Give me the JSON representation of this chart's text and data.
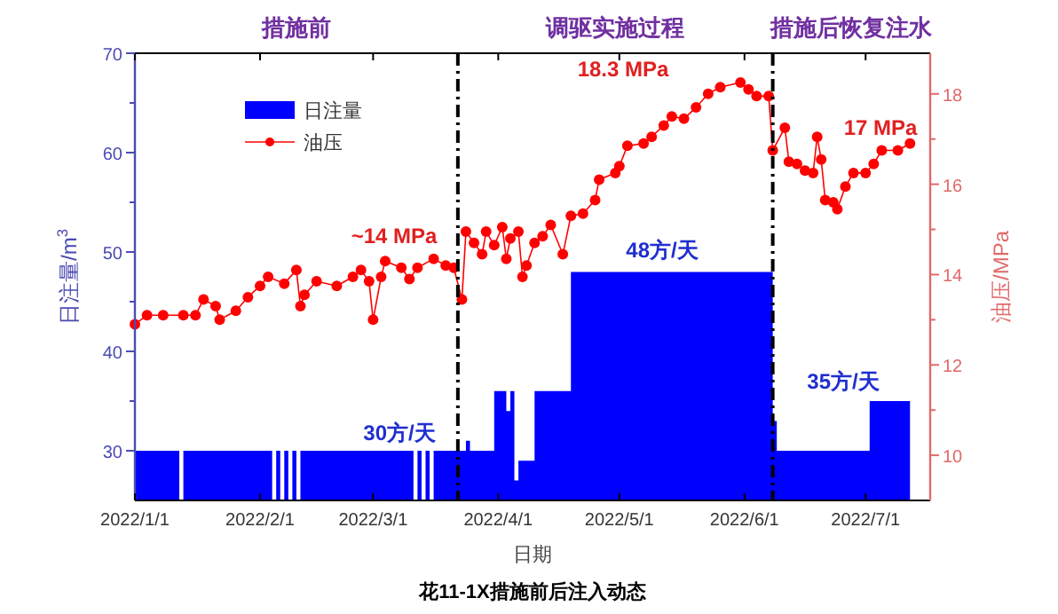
{
  "chart_data": {
    "type": "area",
    "title": "花11-1X措施前后注入动态",
    "xlabel": "日期",
    "ylabel": "日注量/m$^{3}$",
    "y2label": "油压/MPa",
    "xlim": [
      "2022-01-01",
      "2022-07-17"
    ],
    "xticks": [
      {
        "value": "2022-01-01",
        "label": "2022/1/1"
      },
      {
        "value": "2022-02-01",
        "label": "2022/2/1"
      },
      {
        "value": "2022-03-01",
        "label": "2022/3/1"
      },
      {
        "value": "2022-04-01",
        "label": "2022/4/1"
      },
      {
        "value": "2022-05-01",
        "label": "2022/5/1"
      },
      {
        "value": "2022-06-01",
        "label": "2022/6/1"
      },
      {
        "value": "2022-07-01",
        "label": "2022/7/1"
      }
    ],
    "ylim": [
      25,
      70
    ],
    "yticks": [
      30,
      {
        "value": 35,
        "label": null
      },
      40,
      {
        "value": 45,
        "label": null
      },
      50,
      {
        "value": 55,
        "label": null
      },
      60,
      {
        "value": 65,
        "label": null
      },
      70
    ],
    "y2lim": [
      9,
      18.9
    ],
    "y2ticks": [
      10,
      {
        "value": 11,
        "label": null
      },
      12,
      {
        "value": 13,
        "label": null
      },
      14,
      {
        "value": 15,
        "label": null
      },
      16,
      {
        "value": 17,
        "label": null
      },
      18
    ],
    "legend": "top left",
    "ref_lines": [
      {
        "axis": "x",
        "value": "2022-03-22",
        "line_style": "dashdot",
        "color": "#000000"
      },
      {
        "axis": "x",
        "value": "2022-06-08",
        "line_style": "dashdot",
        "color": "#000000"
      }
    ],
    "annotations": [
      "措施前",
      "调驱实施过程",
      "措施后恢复注水",
      "~14 MPa",
      "18.3 MPa",
      "17 MPa",
      "30方/天",
      "48方/天",
      "35方/天"
    ],
    "series": [
      {
        "name": "日注量",
        "color": "#0000ff",
        "x": [
          "2022-01-01",
          "2022-01-02",
          "2022-01-03",
          "2022-01-04",
          "2022-01-05",
          "2022-01-06",
          "2022-01-07",
          "2022-01-08",
          "2022-01-09",
          "2022-01-10",
          "2022-01-11",
          "2022-01-12",
          "2022-01-13",
          "2022-01-14",
          "2022-01-15",
          "2022-01-16",
          "2022-01-17",
          "2022-01-18",
          "2022-01-19",
          "2022-01-20",
          "2022-01-21",
          "2022-01-22",
          "2022-01-23",
          "2022-01-24",
          "2022-01-25",
          "2022-01-26",
          "2022-01-27",
          "2022-01-28",
          "2022-01-29",
          "2022-01-30",
          "2022-01-31",
          "2022-02-01",
          "2022-02-02",
          "2022-02-03",
          "2022-02-04",
          "2022-02-05",
          "2022-02-06",
          "2022-02-07",
          "2022-02-08",
          "2022-02-09",
          "2022-02-10",
          "2022-02-11",
          "2022-02-12",
          "2022-02-13",
          "2022-02-14",
          "2022-02-15",
          "2022-02-16",
          "2022-02-17",
          "2022-02-18",
          "2022-02-19",
          "2022-02-20",
          "2022-02-21",
          "2022-02-22",
          "2022-02-23",
          "2022-02-24",
          "2022-02-25",
          "2022-02-26",
          "2022-02-27",
          "2022-02-28",
          "2022-03-01",
          "2022-03-02",
          "2022-03-03",
          "2022-03-04",
          "2022-03-05",
          "2022-03-06",
          "2022-03-07",
          "2022-03-08",
          "2022-03-09",
          "2022-03-10",
          "2022-03-11",
          "2022-03-12",
          "2022-03-13",
          "2022-03-14",
          "2022-03-15",
          "2022-03-16",
          "2022-03-17",
          "2022-03-18",
          "2022-03-19",
          "2022-03-20",
          "2022-03-21",
          "2022-03-22",
          "2022-03-23",
          "2022-03-24",
          "2022-03-25",
          "2022-03-26",
          "2022-03-27",
          "2022-03-28",
          "2022-03-29",
          "2022-03-30",
          "2022-03-31",
          "2022-04-01",
          "2022-04-02",
          "2022-04-03",
          "2022-04-04",
          "2022-04-05",
          "2022-04-06",
          "2022-04-07",
          "2022-04-08",
          "2022-04-09",
          "2022-04-10",
          "2022-04-11",
          "2022-04-12",
          "2022-04-13",
          "2022-04-14",
          "2022-04-15",
          "2022-04-16",
          "2022-04-17",
          "2022-04-18",
          "2022-04-19",
          "2022-04-20",
          "2022-04-21",
          "2022-04-22",
          "2022-04-23",
          "2022-04-24",
          "2022-04-25",
          "2022-04-26",
          "2022-04-27",
          "2022-04-28",
          "2022-04-29",
          "2022-04-30",
          "2022-05-01",
          "2022-05-02",
          "2022-05-03",
          "2022-05-04",
          "2022-05-05",
          "2022-05-06",
          "2022-05-07",
          "2022-05-08",
          "2022-05-09",
          "2022-05-10",
          "2022-05-11",
          "2022-05-12",
          "2022-05-13",
          "2022-05-14",
          "2022-05-15",
          "2022-05-16",
          "2022-05-17",
          "2022-05-18",
          "2022-05-19",
          "2022-05-20",
          "2022-05-21",
          "2022-05-22",
          "2022-05-23",
          "2022-05-24",
          "2022-05-25",
          "2022-05-26",
          "2022-05-27",
          "2022-05-28",
          "2022-05-29",
          "2022-05-30",
          "2022-05-31",
          "2022-06-01",
          "2022-06-02",
          "2022-06-03",
          "2022-06-04",
          "2022-06-05",
          "2022-06-06",
          "2022-06-07",
          "2022-06-08",
          "2022-06-09",
          "2022-06-10",
          "2022-06-11",
          "2022-06-12",
          "2022-06-13",
          "2022-06-14",
          "2022-06-15",
          "2022-06-16",
          "2022-06-17",
          "2022-06-18",
          "2022-06-19",
          "2022-06-20",
          "2022-06-21",
          "2022-06-22",
          "2022-06-23",
          "2022-06-24",
          "2022-06-25",
          "2022-06-26",
          "2022-06-27",
          "2022-06-28",
          "2022-06-29",
          "2022-06-30",
          "2022-07-01",
          "2022-07-02",
          "2022-07-03",
          "2022-07-04",
          "2022-07-05",
          "2022-07-06",
          "2022-07-07",
          "2022-07-08",
          "2022-07-09",
          "2022-07-10",
          "2022-07-11"
        ],
        "values": [
          30,
          30,
          30,
          30,
          30,
          30,
          30,
          30,
          30,
          30,
          30,
          null,
          30,
          30,
          30,
          30,
          30,
          30,
          30,
          30,
          30,
          30,
          30,
          30,
          30,
          30,
          30,
          30,
          30,
          30,
          30,
          30,
          30,
          30,
          null,
          30,
          null,
          30,
          null,
          30,
          null,
          30,
          30,
          30,
          30,
          30,
          30,
          30,
          30,
          30,
          30,
          30,
          30,
          30,
          30,
          30,
          30,
          30,
          30,
          30,
          30,
          30,
          30,
          30,
          30,
          30,
          30,
          30,
          30,
          null,
          30,
          null,
          30,
          null,
          30,
          30,
          30,
          30,
          30,
          30,
          30,
          30,
          31,
          30,
          30,
          30,
          30,
          30,
          30,
          36,
          36,
          36,
          34,
          36,
          27,
          29,
          29,
          29,
          29,
          36,
          36,
          36,
          36,
          36,
          36,
          36,
          36,
          36,
          48,
          48,
          48,
          48,
          48,
          48,
          48,
          48,
          48,
          48,
          48,
          48,
          48,
          48,
          48,
          48,
          48,
          48,
          48,
          48,
          48,
          48,
          48,
          48,
          48,
          48,
          48,
          48,
          48,
          48,
          48,
          48,
          48,
          48,
          48,
          48,
          48,
          48,
          48,
          48,
          48,
          48,
          48,
          48,
          48,
          48,
          48,
          48,
          48,
          48,
          33,
          30,
          30,
          30,
          30,
          30,
          30,
          30,
          30,
          30,
          30,
          30,
          30,
          30,
          30,
          30,
          30,
          30,
          30,
          30,
          30,
          30,
          30,
          30,
          35,
          35,
          35,
          35,
          35,
          35,
          35,
          35,
          35,
          35
        ]
      },
      {
        "name": "油压",
        "type": "line",
        "axis": "y2",
        "color": "#ff0000",
        "marker": "circle",
        "line_style": "solid",
        "x": [
          "2022-01-01",
          "2022-01-04",
          "2022-01-08",
          "2022-01-13",
          "2022-01-16",
          "2022-01-18",
          "2022-01-21",
          "2022-01-22",
          "2022-01-26",
          "2022-01-29",
          "2022-02-01",
          "2022-02-03",
          "2022-02-07",
          "2022-02-10",
          "2022-02-11",
          "2022-02-12",
          "2022-02-15",
          "2022-02-20",
          "2022-02-24",
          "2022-02-26",
          "2022-02-28",
          "2022-03-01",
          "2022-03-03",
          "2022-03-04",
          "2022-03-08",
          "2022-03-10",
          "2022-03-12",
          "2022-03-16",
          "2022-03-19",
          "2022-03-21",
          "2022-03-23",
          "2022-03-24",
          "2022-03-26",
          "2022-03-28",
          "2022-03-29",
          "2022-03-31",
          "2022-04-02",
          "2022-04-03",
          "2022-04-04",
          "2022-04-06",
          "2022-04-07",
          "2022-04-08",
          "2022-04-10",
          "2022-04-12",
          "2022-04-14",
          "2022-04-17",
          "2022-04-19",
          "2022-04-22",
          "2022-04-25",
          "2022-04-26",
          "2022-04-30",
          "2022-05-01",
          "2022-05-03",
          "2022-05-07",
          "2022-05-09",
          "2022-05-12",
          "2022-05-14",
          "2022-05-17",
          "2022-05-20",
          "2022-05-23",
          "2022-05-26",
          "2022-05-31",
          "2022-06-02",
          "2022-06-04",
          "2022-06-07",
          "2022-06-08",
          "2022-06-11",
          "2022-06-12",
          "2022-06-14",
          "2022-06-16",
          "2022-06-18",
          "2022-06-19",
          "2022-06-20",
          "2022-06-21",
          "2022-06-23",
          "2022-06-24",
          "2022-06-26",
          "2022-06-28",
          "2022-07-01",
          "2022-07-03",
          "2022-07-05",
          "2022-07-09",
          "2022-07-12"
        ],
        "values": [
          12.9,
          13.1,
          13.1,
          13.1,
          13.1,
          13.45,
          13.3,
          13.0,
          13.2,
          13.5,
          13.75,
          13.95,
          13.8,
          14.1,
          13.3,
          13.55,
          13.85,
          13.75,
          13.95,
          14.1,
          13.85,
          13.0,
          13.95,
          14.3,
          14.15,
          13.9,
          14.15,
          14.35,
          14.2,
          14.15,
          13.45,
          14.95,
          14.7,
          14.45,
          14.95,
          14.65,
          15.05,
          14.35,
          14.8,
          14.95,
          13.95,
          14.2,
          14.7,
          14.85,
          15.1,
          14.45,
          15.3,
          15.35,
          15.65,
          16.1,
          16.25,
          16.4,
          16.85,
          16.9,
          17.05,
          17.3,
          17.5,
          17.45,
          17.7,
          18.0,
          18.15,
          18.25,
          18.1,
          17.95,
          17.95,
          16.75,
          17.25,
          16.5,
          16.45,
          16.3,
          16.25,
          17.05,
          16.55,
          15.65,
          15.6,
          15.45,
          15.95,
          16.25,
          16.25,
          16.45,
          16.75,
          16.75,
          16.9
        ]
      }
    ]
  }
}
